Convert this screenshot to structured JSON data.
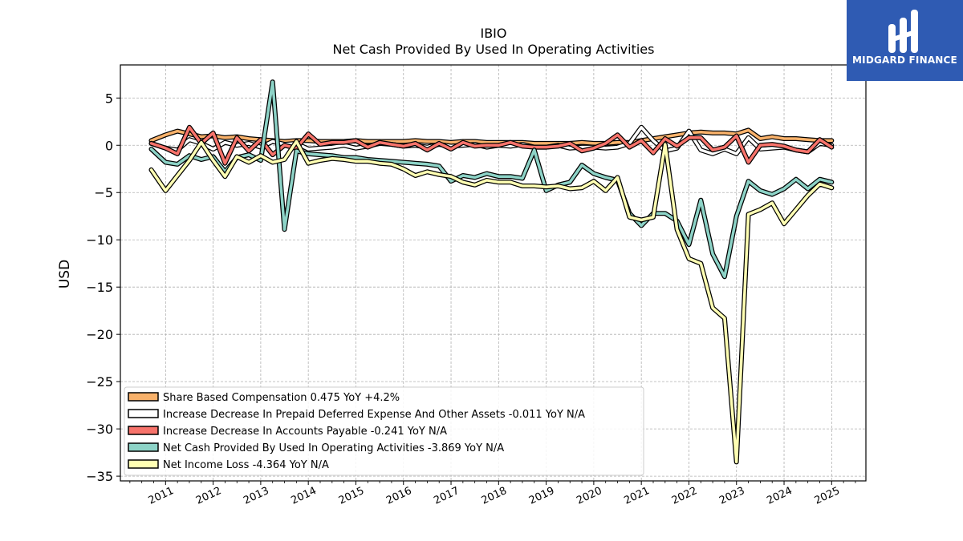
{
  "brand": {
    "name": "MIDGARD FINANCE",
    "color": "#2f5bb3"
  },
  "chart_data": {
    "type": "line",
    "title": "IBIO",
    "subtitle": "Net Cash Provided By Used In Operating Activities",
    "ylabel": "USD",
    "xlabel": "",
    "ylim": [
      -35.5,
      8.5
    ],
    "xlim": [
      2010.05,
      2025.72
    ],
    "yticks": [
      5,
      0,
      -5,
      -10,
      -15,
      -20,
      -25,
      -30,
      -35
    ],
    "ytick_labels": [
      "5",
      "0",
      "−5",
      "−10",
      "−15",
      "−20",
      "−25",
      "−30",
      "−35"
    ],
    "xticks": [
      2011,
      2012,
      2013,
      2014,
      2015,
      2016,
      2017,
      2018,
      2019,
      2020,
      2021,
      2022,
      2023,
      2024,
      2025
    ],
    "xtick_labels": [
      "2011",
      "2012",
      "2013",
      "2014",
      "2015",
      "2016",
      "2017",
      "2018",
      "2019",
      "2020",
      "2021",
      "2022",
      "2023",
      "2024",
      "2025"
    ],
    "grid": true,
    "legend_position": "lower-left",
    "x": [
      2010.7,
      2011.0,
      2011.25,
      2011.5,
      2011.75,
      2012.0,
      2012.25,
      2012.5,
      2012.75,
      2013.0,
      2013.25,
      2013.5,
      2013.75,
      2014.0,
      2014.25,
      2014.5,
      2014.75,
      2015.0,
      2015.25,
      2015.5,
      2015.75,
      2016.0,
      2016.25,
      2016.5,
      2016.75,
      2017.0,
      2017.25,
      2017.5,
      2017.75,
      2018.0,
      2018.25,
      2018.5,
      2018.75,
      2019.0,
      2019.25,
      2019.5,
      2019.75,
      2020.0,
      2020.25,
      2020.5,
      2020.75,
      2021.0,
      2021.25,
      2021.5,
      2021.75,
      2022.0,
      2022.25,
      2022.5,
      2022.75,
      2023.0,
      2023.25,
      2023.5,
      2023.75,
      2024.0,
      2024.25,
      2024.5,
      2024.75,
      2025.0
    ],
    "series": [
      {
        "name": "Share Based Compensation",
        "legend": "Share Based Compensation  0.475 YoY +4.2%",
        "color": "#f9b26b",
        "values": [
          0.5,
          1.1,
          1.5,
          1.2,
          0.9,
          1.0,
          0.8,
          0.9,
          0.7,
          0.6,
          0.5,
          0.4,
          0.5,
          0.5,
          0.4,
          0.4,
          0.4,
          0.5,
          0.4,
          0.4,
          0.4,
          0.4,
          0.5,
          0.4,
          0.4,
          0.3,
          0.4,
          0.4,
          0.3,
          0.3,
          0.3,
          0.3,
          0.2,
          0.2,
          0.2,
          0.2,
          0.3,
          0.2,
          0.2,
          0.3,
          0.3,
          0.5,
          0.7,
          0.9,
          1.1,
          1.3,
          1.4,
          1.3,
          1.3,
          1.2,
          1.6,
          0.7,
          0.9,
          0.7,
          0.7,
          0.6,
          0.5,
          0.5
        ]
      },
      {
        "name": "Increase Decrease In Prepaid Deferred Expense And Other Assets",
        "legend": "Increase Decrease In Prepaid Deferred Expense And Other Assets  -0.011 YoY N/A",
        "color": "#ffffff",
        "values": [
          0.2,
          -0.3,
          -0.5,
          0.6,
          0.2,
          -0.4,
          0.3,
          0.0,
          0.2,
          -0.2,
          0.4,
          0.1,
          0.2,
          -0.4,
          -0.3,
          -0.2,
          0.0,
          -0.3,
          -0.1,
          0.2,
          0.1,
          -0.1,
          0.0,
          -0.2,
          0.1,
          -0.1,
          0.0,
          0.1,
          -0.2,
          0.0,
          -0.1,
          0.1,
          -0.2,
          -0.2,
          0.0,
          -0.3,
          -0.2,
          -0.2,
          -0.3,
          -0.2,
          0.2,
          1.9,
          0.5,
          -0.6,
          -0.3,
          1.5,
          -0.5,
          -0.9,
          -0.4,
          -0.9,
          0.8,
          -0.4,
          -0.3,
          -0.2,
          -0.5,
          -0.7,
          0.2,
          -0.0
        ]
      },
      {
        "name": "Increase Decrease In Accounts Payable",
        "legend": "Increase Decrease In Accounts Payable  -0.241 YoY N/A",
        "color": "#f7736b",
        "values": [
          0.2,
          -0.3,
          -0.9,
          1.9,
          0.2,
          1.3,
          -1.9,
          0.8,
          -0.6,
          0.6,
          -1.0,
          0.0,
          -0.3,
          1.2,
          0.1,
          0.3,
          0.3,
          0.5,
          -0.2,
          0.3,
          0.1,
          -0.1,
          0.2,
          -0.5,
          0.2,
          -0.4,
          0.3,
          -0.1,
          0.0,
          0.0,
          0.3,
          -0.1,
          -0.2,
          -0.2,
          -0.1,
          0.2,
          -0.6,
          -0.3,
          0.2,
          1.1,
          -0.2,
          0.5,
          -0.8,
          0.7,
          -0.1,
          0.8,
          0.8,
          -0.5,
          -0.2,
          1.0,
          -1.8,
          0.0,
          0.1,
          -0.1,
          -0.5,
          -0.7,
          0.6,
          -0.2
        ]
      },
      {
        "name": "Net Cash Provided By Used In Operating Activities",
        "legend": "Net Cash Provided By Used In Operating Activities  -3.869 YoY N/A",
        "color": "#8dd3c7",
        "values": [
          -0.4,
          -1.8,
          -2.0,
          -1.1,
          -1.5,
          -1.2,
          -2.8,
          -1.3,
          -1.0,
          -1.6,
          6.7,
          -8.9,
          -0.6,
          -0.9,
          -1.0,
          -1.1,
          -1.3,
          -1.3,
          -1.5,
          -1.6,
          -1.7,
          -1.8,
          -1.9,
          -2.0,
          -2.2,
          -3.8,
          -3.2,
          -3.4,
          -3.0,
          -3.3,
          -3.3,
          -3.5,
          -0.5,
          -4.8,
          -4.2,
          -3.9,
          -2.1,
          -3.0,
          -3.4,
          -3.7,
          -7.2,
          -8.5,
          -7.2,
          -7.2,
          -8.0,
          -10.5,
          -5.8,
          -11.5,
          -13.9,
          -7.5,
          -3.8,
          -4.8,
          -5.2,
          -4.6,
          -3.6,
          -4.6,
          -3.6,
          -3.9
        ]
      },
      {
        "name": "Net Income Loss",
        "legend": "Net Income Loss  -4.364 YoY N/A",
        "color": "#ffffb3",
        "values": [
          -2.6,
          -4.8,
          -3.2,
          -1.6,
          0.3,
          -1.6,
          -3.3,
          -1.2,
          -1.8,
          -1.1,
          -1.8,
          -1.5,
          0.4,
          -1.9,
          -1.6,
          -1.4,
          -1.5,
          -1.7,
          -1.7,
          -1.9,
          -2.0,
          -2.5,
          -3.2,
          -2.8,
          -3.1,
          -3.3,
          -3.9,
          -4.2,
          -3.7,
          -3.9,
          -3.9,
          -4.3,
          -4.3,
          -4.4,
          -4.3,
          -4.6,
          -4.5,
          -3.8,
          -4.8,
          -3.4,
          -7.6,
          -7.9,
          -7.6,
          0.1,
          -8.9,
          -12.0,
          -12.5,
          -17.2,
          -18.3,
          -33.5,
          -7.3,
          -6.8,
          -6.1,
          -8.3,
          -6.8,
          -5.3,
          -4.1,
          -4.5
        ]
      }
    ]
  }
}
